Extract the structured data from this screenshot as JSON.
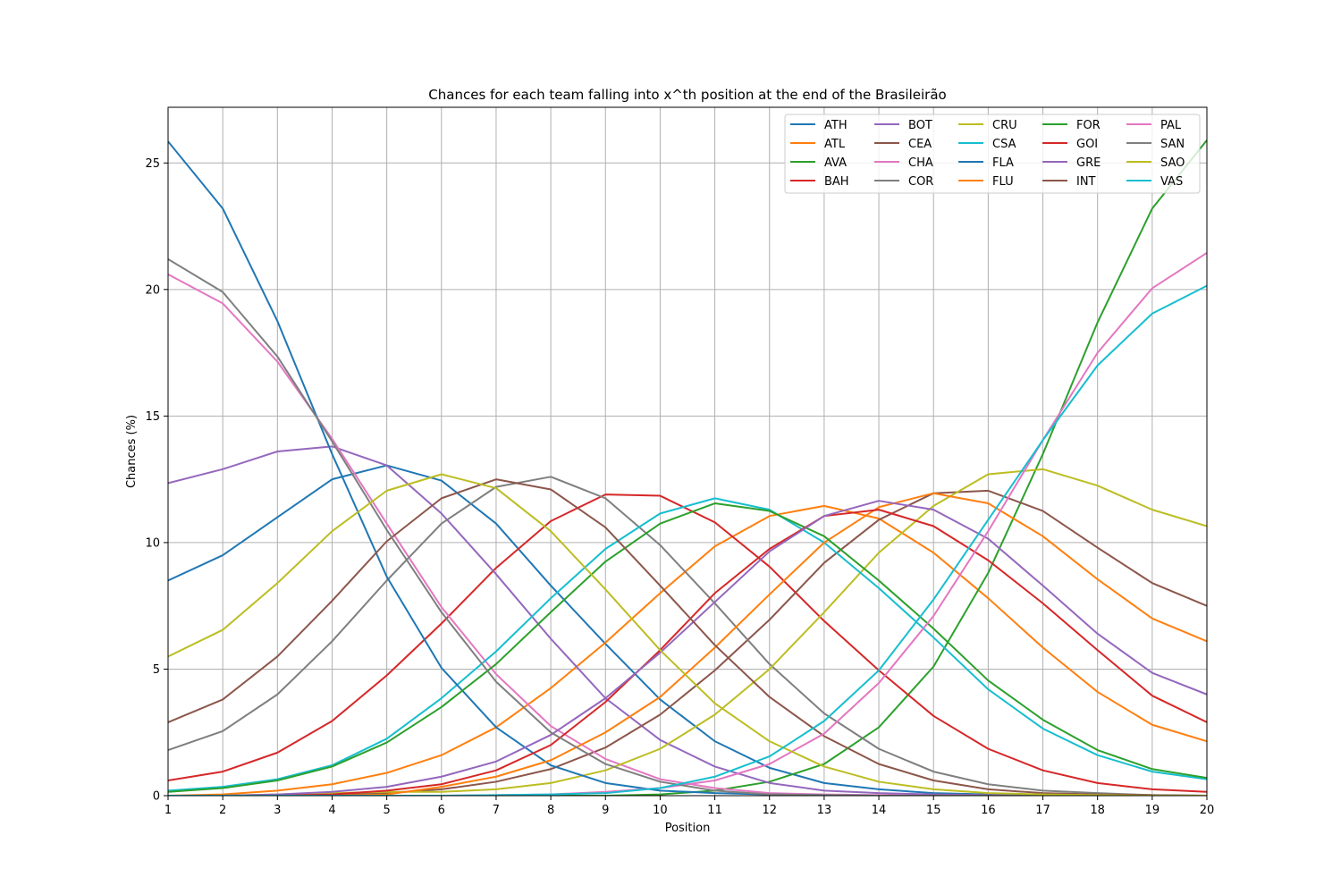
{
  "chart_data": {
    "type": "line",
    "title": "Chances for each team falling into x^th position at the end of the Brasileirão",
    "xlabel": "Position",
    "ylabel": "Chances (%)",
    "xlim": [
      1,
      20
    ],
    "ylim": [
      0,
      27.2
    ],
    "x": [
      1,
      2,
      3,
      4,
      5,
      6,
      7,
      8,
      9,
      10,
      11,
      12,
      13,
      14,
      15,
      16,
      17,
      18,
      19,
      20
    ],
    "x_ticks": [
      "1",
      "2",
      "3",
      "4",
      "5",
      "6",
      "7",
      "8",
      "9",
      "10",
      "11",
      "12",
      "13",
      "14",
      "15",
      "16",
      "17",
      "18",
      "19",
      "20"
    ],
    "y_ticks": [
      0,
      5,
      10,
      15,
      20,
      25
    ],
    "grid": true,
    "legend_position": "top-right",
    "legend_columns": 5,
    "series": [
      {
        "name": "ATH",
        "color": "#1f77b4",
        "values": [
          8.5,
          9.5,
          11.0,
          12.5,
          13.05,
          12.45,
          10.75,
          8.3,
          6.0,
          3.8,
          2.15,
          1.1,
          0.5,
          0.25,
          0.1,
          0.05,
          0.02,
          0.01,
          0.0,
          0.0
        ]
      },
      {
        "name": "ATL",
        "color": "#ff7f0e",
        "values": [
          0.0,
          0.05,
          0.2,
          0.45,
          0.9,
          1.6,
          2.7,
          4.25,
          6.05,
          8.0,
          9.85,
          11.05,
          11.45,
          10.95,
          9.6,
          7.8,
          5.85,
          4.1,
          2.8,
          2.15
        ]
      },
      {
        "name": "AVA",
        "color": "#2ca02c",
        "values": [
          0.0,
          0.0,
          0.0,
          0.0,
          0.0,
          0.0,
          0.0,
          0.0,
          0.0,
          0.05,
          0.2,
          0.55,
          1.25,
          2.7,
          5.1,
          8.8,
          13.5,
          18.7,
          23.2,
          25.9
        ]
      },
      {
        "name": "BAH",
        "color": "#d62728",
        "values": [
          0.6,
          0.95,
          1.7,
          2.95,
          4.75,
          6.8,
          9.0,
          10.85,
          11.9,
          11.85,
          10.8,
          9.05,
          6.9,
          4.95,
          3.15,
          1.85,
          1.0,
          0.5,
          0.25,
          0.15
        ]
      },
      {
        "name": "BOT",
        "color": "#9467bd",
        "values": [
          12.35,
          12.9,
          13.6,
          13.8,
          13.05,
          11.15,
          8.75,
          6.2,
          3.85,
          2.2,
          1.15,
          0.5,
          0.2,
          0.1,
          0.05,
          0.02,
          0.0,
          0.0,
          0.0,
          0.0
        ]
      },
      {
        "name": "CEA",
        "color": "#8c564b",
        "values": [
          0.0,
          0.0,
          0.0,
          0.05,
          0.1,
          0.25,
          0.55,
          1.05,
          1.9,
          3.2,
          4.95,
          6.95,
          9.2,
          10.9,
          11.95,
          12.05,
          11.25,
          9.8,
          8.4,
          7.5
        ]
      },
      {
        "name": "CHA",
        "color": "#e377c2",
        "values": [
          20.6,
          19.45,
          17.15,
          14.1,
          10.75,
          7.45,
          4.8,
          2.75,
          1.45,
          0.65,
          0.3,
          0.1,
          0.05,
          0.02,
          0.0,
          0.0,
          0.0,
          0.0,
          0.0,
          0.0
        ]
      },
      {
        "name": "COR",
        "color": "#7f7f7f",
        "values": [
          1.8,
          2.55,
          4.0,
          6.1,
          8.5,
          10.75,
          12.2,
          12.6,
          11.75,
          9.9,
          7.6,
          5.2,
          3.25,
          1.85,
          0.95,
          0.45,
          0.2,
          0.1,
          0.02,
          0.0
        ]
      },
      {
        "name": "CRU",
        "color": "#bcbd22",
        "values": [
          0.0,
          0.0,
          0.05,
          0.1,
          0.15,
          0.15,
          0.25,
          0.5,
          1.0,
          1.85,
          3.2,
          5.0,
          7.25,
          9.6,
          11.45,
          12.7,
          12.9,
          12.25,
          11.3,
          10.65
        ]
      },
      {
        "name": "CSA",
        "color": "#17becf",
        "values": [
          0.2,
          0.35,
          0.65,
          1.2,
          2.25,
          3.85,
          5.7,
          7.8,
          9.75,
          11.15,
          11.75,
          11.3,
          10.0,
          8.2,
          6.25,
          4.2,
          2.65,
          1.6,
          0.95,
          0.65
        ]
      },
      {
        "name": "FLA",
        "color": "#1f77b4",
        "values": [
          25.85,
          23.2,
          18.75,
          13.5,
          8.65,
          5.05,
          2.7,
          1.2,
          0.5,
          0.2,
          0.1,
          0.05,
          0.02,
          0.0,
          0.0,
          0.0,
          0.0,
          0.0,
          0.0,
          0.0
        ]
      },
      {
        "name": "FLU",
        "color": "#ff7f0e",
        "values": [
          0.0,
          0.0,
          0.0,
          0.0,
          0.05,
          0.35,
          0.75,
          1.4,
          2.5,
          3.9,
          5.85,
          7.95,
          10.0,
          11.4,
          11.95,
          11.55,
          10.25,
          8.55,
          7.0,
          6.1
        ]
      },
      {
        "name": "FOR",
        "color": "#2ca02c",
        "values": [
          0.15,
          0.3,
          0.6,
          1.15,
          2.1,
          3.5,
          5.2,
          7.25,
          9.25,
          10.75,
          11.55,
          11.25,
          10.25,
          8.5,
          6.6,
          4.55,
          3.0,
          1.8,
          1.05,
          0.7
        ]
      },
      {
        "name": "GOI",
        "color": "#d62728",
        "values": [
          0.0,
          0.0,
          0.0,
          0.05,
          0.2,
          0.45,
          1.0,
          2.0,
          3.7,
          5.75,
          8.0,
          9.75,
          11.05,
          11.3,
          10.65,
          9.3,
          7.6,
          5.75,
          3.95,
          2.9
        ]
      },
      {
        "name": "GRE",
        "color": "#9467bd",
        "values": [
          0.0,
          0.0,
          0.05,
          0.15,
          0.35,
          0.75,
          1.35,
          2.4,
          3.85,
          5.65,
          7.65,
          9.65,
          11.05,
          11.65,
          11.3,
          10.15,
          8.3,
          6.4,
          4.85,
          4.0
        ]
      },
      {
        "name": "INT",
        "color": "#8c564b",
        "values": [
          2.9,
          3.8,
          5.5,
          7.7,
          10.05,
          11.75,
          12.5,
          12.1,
          10.6,
          8.3,
          5.95,
          3.9,
          2.35,
          1.25,
          0.6,
          0.25,
          0.1,
          0.05,
          0.02,
          0.0
        ]
      },
      {
        "name": "PAL",
        "color": "#e377c2",
        "values": [
          0.0,
          0.0,
          0.0,
          0.0,
          0.0,
          0.0,
          0.02,
          0.05,
          0.15,
          0.3,
          0.6,
          1.25,
          2.45,
          4.45,
          7.1,
          10.45,
          14.05,
          17.5,
          20.05,
          21.45
        ]
      },
      {
        "name": "SAN",
        "color": "#7f7f7f",
        "values": [
          21.2,
          19.9,
          17.35,
          14.0,
          10.5,
          7.25,
          4.5,
          2.5,
          1.25,
          0.55,
          0.2,
          0.05,
          0.02,
          0.0,
          0.0,
          0.0,
          0.0,
          0.0,
          0.0,
          0.0
        ]
      },
      {
        "name": "SAO",
        "color": "#bcbd22",
        "values": [
          5.5,
          6.55,
          8.4,
          10.45,
          12.05,
          12.7,
          12.15,
          10.45,
          8.15,
          5.75,
          3.65,
          2.15,
          1.15,
          0.55,
          0.25,
          0.1,
          0.05,
          0.02,
          0.0,
          0.0
        ]
      },
      {
        "name": "VAS",
        "color": "#17becf",
        "values": [
          0.0,
          0.0,
          0.0,
          0.0,
          0.0,
          0.0,
          0.02,
          0.05,
          0.1,
          0.3,
          0.75,
          1.55,
          2.95,
          4.95,
          7.75,
          10.9,
          14.05,
          17.0,
          19.05,
          20.15
        ]
      }
    ]
  }
}
